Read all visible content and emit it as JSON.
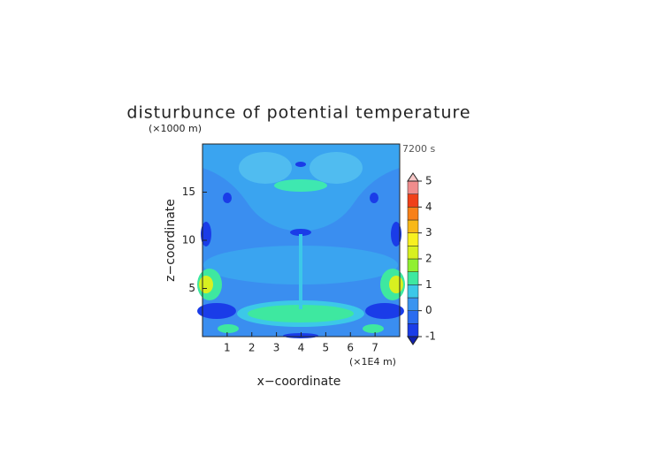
{
  "chart_data": {
    "type": "contour",
    "title": "disturbunce of potential temperature",
    "y_unit": "(×1000 m)",
    "time_label": "7200 s",
    "xlabel": "x−coordinate",
    "ylabel": "z−coordinate",
    "x_unit": "(×1E4 m)",
    "xlim": [
      0,
      8
    ],
    "xticks": [
      1,
      2,
      3,
      4,
      5,
      6,
      7
    ],
    "ylim": [
      0,
      20
    ],
    "yticks": [
      5,
      10,
      15
    ],
    "colorbar": {
      "levels": [
        -1,
        -0.5,
        0,
        0.5,
        1,
        1.5,
        2,
        2.5,
        3,
        3.5,
        4,
        4.5,
        5
      ],
      "colors": [
        "#1a3ce8",
        "#2a6cf0",
        "#3a94f0",
        "#3cc8e8",
        "#3ee8a0",
        "#90f030",
        "#d8f020",
        "#f8f020",
        "#f8b818",
        "#f88018",
        "#f04018",
        "#f08c8c"
      ],
      "under_color": "#1020b0",
      "over_color": "#f8c8c8",
      "ticks": [
        -1,
        0,
        1,
        2,
        3,
        4,
        5
      ]
    }
  }
}
